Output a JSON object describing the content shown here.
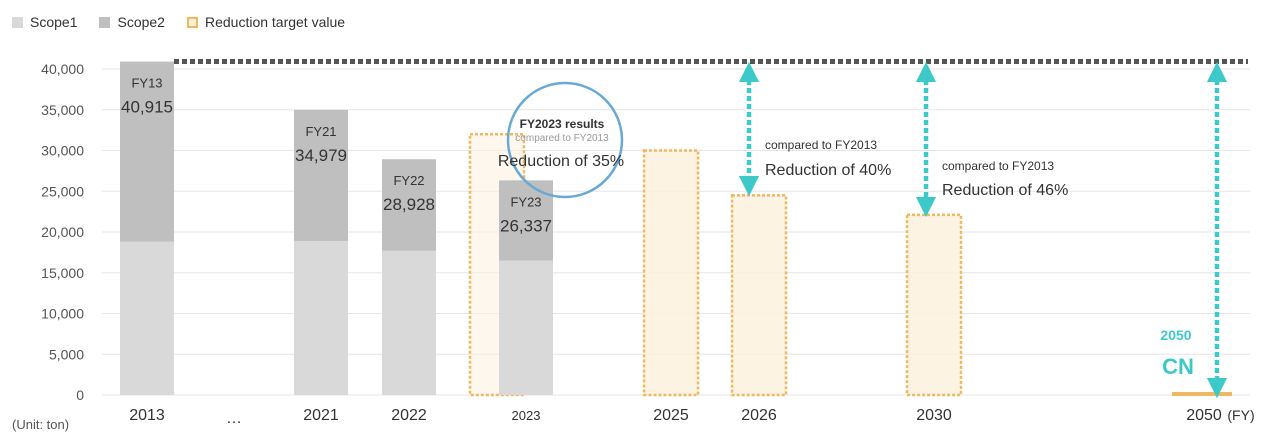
{
  "chart_data": {
    "type": "bar",
    "unit_label": "(Unit: ton)",
    "x_unit": "(FY)",
    "ylim": [
      0,
      40000
    ],
    "yticks": [
      "0",
      "5,000",
      "10,000",
      "15,000",
      "20,000",
      "25,000",
      "30,000",
      "35,000",
      "40,000"
    ],
    "categories": [
      {
        "label": "2013"
      },
      {
        "label": "…"
      },
      {
        "label": "2021"
      },
      {
        "label": "2022"
      },
      {
        "label": "2023"
      },
      {
        "label": "2025"
      },
      {
        "label": "2026"
      },
      {
        "label": "2030"
      },
      {
        "label": "2050"
      }
    ],
    "series": [
      {
        "name": "Scope1",
        "color": "#d9d9d9",
        "values": [
          18800,
          null,
          18900,
          17700,
          16500,
          null,
          null,
          null,
          null
        ]
      },
      {
        "name": "Scope2",
        "color": "#bfbfbf",
        "values": [
          22115,
          null,
          16079,
          11228,
          9837,
          null,
          null,
          null,
          null
        ]
      },
      {
        "name": "Reduction target value",
        "color": "#f0b961",
        "values": [
          null,
          null,
          null,
          null,
          32000,
          30000,
          24500,
          22100,
          0
        ]
      }
    ],
    "actual_labels": [
      {
        "fy": "FY13",
        "value": "40,915"
      },
      {
        "fy": "FY21",
        "value": "34,979"
      },
      {
        "fy": "FY22",
        "value": "28,928"
      },
      {
        "fy": "FY23",
        "value": "26,337"
      }
    ],
    "annotations": {
      "fy2023_title": "FY2023 results",
      "fy2023_sub": "compared to FY2013",
      "fy2023_reduction": "Reduction of 35%",
      "y2026_sub": "compared to FY2013",
      "y2026_reduction": "Reduction of 40%",
      "y2030_sub": "compared to FY2013",
      "y2030_reduction": "Reduction of 46%",
      "cn_year": "2050",
      "cn_label": "CN"
    },
    "grid": true,
    "legend": "top-left"
  }
}
